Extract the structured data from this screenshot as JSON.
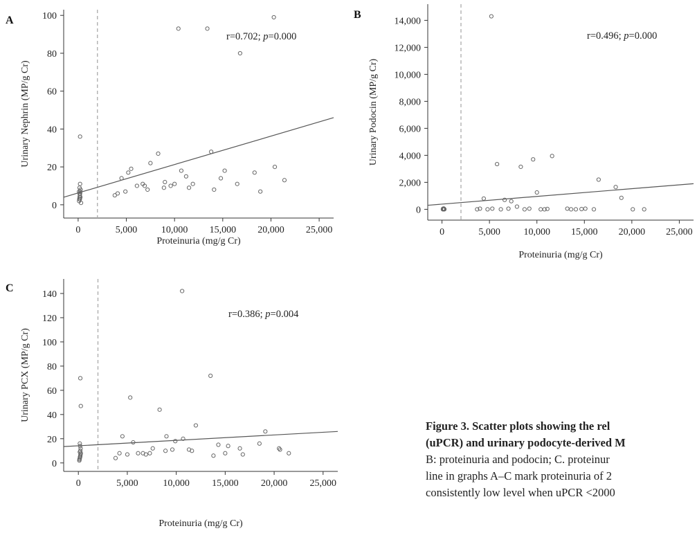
{
  "chart_data": [
    {
      "panel": "A",
      "type": "scatter",
      "xlabel": "Proteinuria (mg/g Cr)",
      "ylabel": "Urinary Nephrin (MP/g Cr)",
      "xlim": [
        -1500,
        26500
      ],
      "ylim": [
        -7,
        103
      ],
      "xticks": [
        0,
        5000,
        10000,
        15000,
        20000,
        25000
      ],
      "xtick_labels": [
        "0",
        "5,000",
        "10,000",
        "15,000",
        "20,000",
        "25,000"
      ],
      "yticks": [
        0,
        20,
        40,
        60,
        80,
        100
      ],
      "ytick_labels": [
        "0",
        "20",
        "40",
        "60",
        "80",
        "100"
      ],
      "threshold_x": 2000,
      "annotation": {
        "r_text": "r=0.702; ",
        "p_label": "p",
        "p_text": "=0.000"
      },
      "regression": {
        "x": [
          -1500,
          26500
        ],
        "y": [
          4,
          46
        ]
      },
      "points": [
        [
          100,
          2
        ],
        [
          120,
          3
        ],
        [
          150,
          4
        ],
        [
          180,
          5
        ],
        [
          200,
          6
        ],
        [
          220,
          7
        ],
        [
          250,
          8
        ],
        [
          150,
          9
        ],
        [
          200,
          11
        ],
        [
          300,
          1
        ],
        [
          100,
          7
        ],
        [
          180,
          3
        ],
        [
          230,
          4
        ],
        [
          150,
          6
        ],
        [
          200,
          36
        ],
        [
          3800,
          5
        ],
        [
          4100,
          6
        ],
        [
          4500,
          14
        ],
        [
          4900,
          7
        ],
        [
          5200,
          17
        ],
        [
          5500,
          19
        ],
        [
          6100,
          10
        ],
        [
          6700,
          11
        ],
        [
          6900,
          10
        ],
        [
          7200,
          8
        ],
        [
          7500,
          22
        ],
        [
          8300,
          27
        ],
        [
          8900,
          9
        ],
        [
          9000,
          12
        ],
        [
          9600,
          10
        ],
        [
          10000,
          11
        ],
        [
          10400,
          93
        ],
        [
          10700,
          18
        ],
        [
          11200,
          15
        ],
        [
          11500,
          9
        ],
        [
          11900,
          11
        ],
        [
          13400,
          93
        ],
        [
          13800,
          28
        ],
        [
          14100,
          8
        ],
        [
          14800,
          14
        ],
        [
          15200,
          18
        ],
        [
          16500,
          11
        ],
        [
          16800,
          80
        ],
        [
          18300,
          17
        ],
        [
          18900,
          7
        ],
        [
          20300,
          99
        ],
        [
          20400,
          20
        ],
        [
          21400,
          13
        ]
      ]
    },
    {
      "panel": "B",
      "type": "scatter",
      "xlabel": "Proteinuria (mg/g Cr)",
      "ylabel": "Urinary Podocin (MP/g Cr)",
      "xlim": [
        -1500,
        26500
      ],
      "ylim": [
        -800,
        15200
      ],
      "xticks": [
        0,
        5000,
        10000,
        15000,
        20000,
        25000
      ],
      "xtick_labels": [
        "0",
        "5,000",
        "10,000",
        "15,000",
        "20,000",
        "25,000"
      ],
      "yticks": [
        0,
        2000,
        4000,
        6000,
        8000,
        10000,
        12000,
        14000
      ],
      "ytick_labels": [
        "0",
        "2,000",
        "4,000",
        "6,000",
        "8,000",
        "10,000",
        "12,000",
        "14,000"
      ],
      "threshold_x": 2000,
      "annotation": {
        "r_text": "r=0.496; ",
        "p_label": "p",
        "p_text": "=0.000"
      },
      "regression": {
        "x": [
          -1500,
          26500
        ],
        "y": [
          300,
          1900
        ]
      },
      "points": [
        [
          100,
          0
        ],
        [
          150,
          20
        ],
        [
          200,
          40
        ],
        [
          250,
          10
        ],
        [
          180,
          60
        ],
        [
          220,
          30
        ],
        [
          120,
          50
        ],
        [
          160,
          0
        ],
        [
          240,
          0
        ],
        [
          200,
          20
        ],
        [
          3700,
          0
        ],
        [
          4000,
          50
        ],
        [
          4400,
          800
        ],
        [
          4800,
          0
        ],
        [
          5200,
          14300
        ],
        [
          5300,
          50
        ],
        [
          5800,
          3350
        ],
        [
          6200,
          0
        ],
        [
          6600,
          700
        ],
        [
          7000,
          50
        ],
        [
          7300,
          600
        ],
        [
          7900,
          200
        ],
        [
          8300,
          3150
        ],
        [
          8700,
          0
        ],
        [
          9200,
          50
        ],
        [
          9600,
          3700
        ],
        [
          10000,
          1250
        ],
        [
          10400,
          0
        ],
        [
          10800,
          0
        ],
        [
          11100,
          30
        ],
        [
          11600,
          3950
        ],
        [
          13200,
          50
        ],
        [
          13600,
          0
        ],
        [
          14100,
          0
        ],
        [
          14700,
          20
        ],
        [
          15100,
          50
        ],
        [
          16000,
          0
        ],
        [
          16500,
          2200
        ],
        [
          18300,
          1650
        ],
        [
          18900,
          850
        ],
        [
          20100,
          0
        ],
        [
          21300,
          0
        ]
      ]
    },
    {
      "panel": "C",
      "type": "scatter",
      "xlabel": "Proteinuria (mg/g Cr)",
      "ylabel": "Urinary PCX (MP/g Cr)",
      "xlim": [
        -1500,
        26500
      ],
      "ylim": [
        -7,
        152
      ],
      "xticks": [
        0,
        5000,
        10000,
        15000,
        20000,
        25000
      ],
      "xtick_labels": [
        "0",
        "5,000",
        "10,000",
        "15,000",
        "20,000",
        "25,000"
      ],
      "yticks": [
        0,
        20,
        40,
        60,
        80,
        100,
        120,
        140
      ],
      "ytick_labels": [
        "0",
        "20",
        "40",
        "60",
        "80",
        "100",
        "120",
        "140"
      ],
      "threshold_x": 2000,
      "annotation": {
        "r_text": "r=0.386; ",
        "p_label": "p",
        "p_text": "=0.004"
      },
      "regression": {
        "x": [
          -1500,
          26500
        ],
        "y": [
          13.5,
          26
        ]
      },
      "points": [
        [
          100,
          2
        ],
        [
          120,
          3
        ],
        [
          150,
          4
        ],
        [
          180,
          5
        ],
        [
          200,
          6
        ],
        [
          220,
          7
        ],
        [
          250,
          8
        ],
        [
          150,
          9
        ],
        [
          200,
          10
        ],
        [
          230,
          12
        ],
        [
          180,
          14
        ],
        [
          150,
          16
        ],
        [
          200,
          70
        ],
        [
          250,
          47
        ],
        [
          120,
          3
        ],
        [
          170,
          5
        ],
        [
          3800,
          4
        ],
        [
          4200,
          8
        ],
        [
          4500,
          22
        ],
        [
          5000,
          7
        ],
        [
          5300,
          54
        ],
        [
          5600,
          17
        ],
        [
          6100,
          8
        ],
        [
          6600,
          8
        ],
        [
          6900,
          7
        ],
        [
          7300,
          8
        ],
        [
          7600,
          12
        ],
        [
          8300,
          44
        ],
        [
          8900,
          10
        ],
        [
          9000,
          22
        ],
        [
          9600,
          11
        ],
        [
          9900,
          18
        ],
        [
          10600,
          142
        ],
        [
          10700,
          20
        ],
        [
          11300,
          11
        ],
        [
          11600,
          10
        ],
        [
          12000,
          31
        ],
        [
          13500,
          72
        ],
        [
          13800,
          6
        ],
        [
          14300,
          15
        ],
        [
          15000,
          8
        ],
        [
          15300,
          14
        ],
        [
          16500,
          12
        ],
        [
          16800,
          7
        ],
        [
          18500,
          16
        ],
        [
          19100,
          26
        ],
        [
          20500,
          12
        ],
        [
          20600,
          11
        ],
        [
          21500,
          8
        ]
      ]
    }
  ],
  "caption": {
    "title_line1": "Figure 3. Scatter plots showing the rel",
    "title_line2": "(uPCR) and urinary podocyte-derived M",
    "body_line1": "B: proteinuria and podocin; C. proteinur",
    "body_line2": "line in graphs A–C mark proteinuria of 2",
    "body_line3": "consistently low level when uPCR <2000"
  },
  "colors": {
    "axis": "#333333",
    "marker": "#666666",
    "threshold": "#aaaaaa",
    "regression": "#555555"
  }
}
